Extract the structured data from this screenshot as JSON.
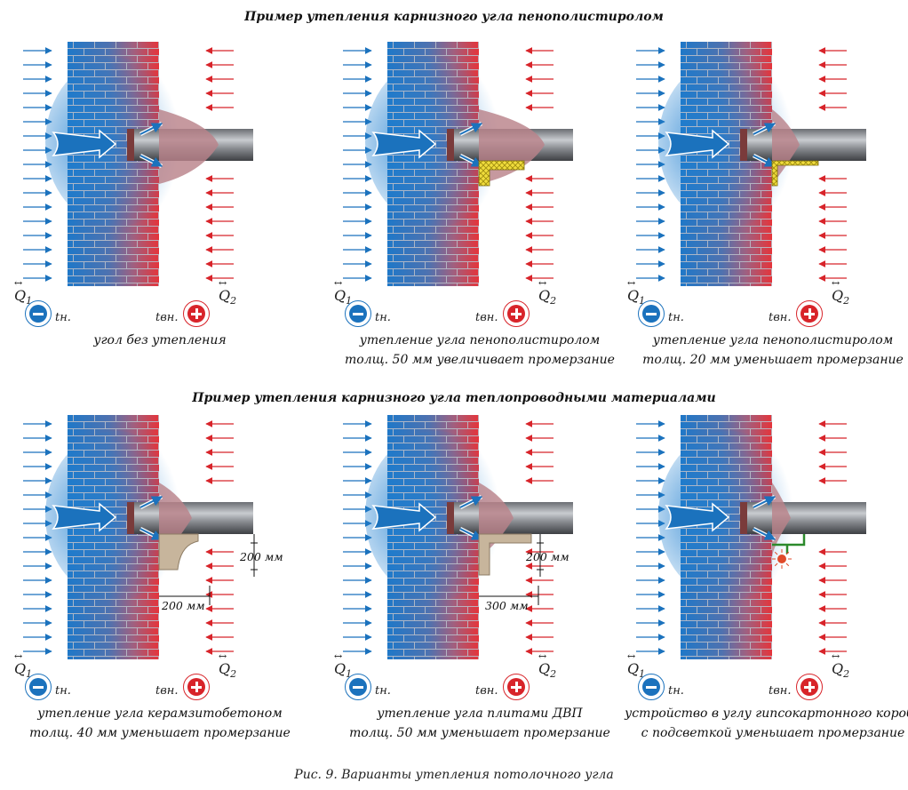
{
  "titles": {
    "top": "Пример утепления карнизного угла пенополистиролом",
    "bottom": "Пример утепления карнизного угла теплопроводными материалами"
  },
  "symbols": {
    "q1": "Q",
    "q1_sub": "1",
    "q2": "Q",
    "q2_sub": "2",
    "t_outside": "tн.",
    "t_inside": "tвн.",
    "vec": "↔"
  },
  "panels": [
    {
      "caption": [
        "угол без утепления"
      ]
    },
    {
      "caption": [
        "утепление угла пенополистиролом",
        "толщ. 50 мм увеличивает промерзание"
      ]
    },
    {
      "caption": [
        "утепление угла пенополистиролом",
        "толщ. 20 мм уменьшает промерзание"
      ]
    },
    {
      "caption": [
        "утепление угла керамзитобетоном",
        "толщ. 40 мм уменьшает промерзание"
      ],
      "dims": [
        "200 мм",
        "200 мм"
      ]
    },
    {
      "caption": [
        "утепление угла плитами ДВП",
        "толщ. 50 мм уменьшает промерзание"
      ],
      "dims": [
        "200 мм",
        "300 мм"
      ]
    },
    {
      "caption": [
        "устройство в углу гипсокартонного короба",
        "с подсветкой уменьшает промерзание"
      ]
    }
  ],
  "figure_caption": "Рис. 9. Варианты утепления потолочного угла",
  "colors": {
    "cold": "#1b72bd",
    "warm": "#d8242a",
    "insulation": "#e8d43a",
    "concrete": "#c7b59c"
  }
}
